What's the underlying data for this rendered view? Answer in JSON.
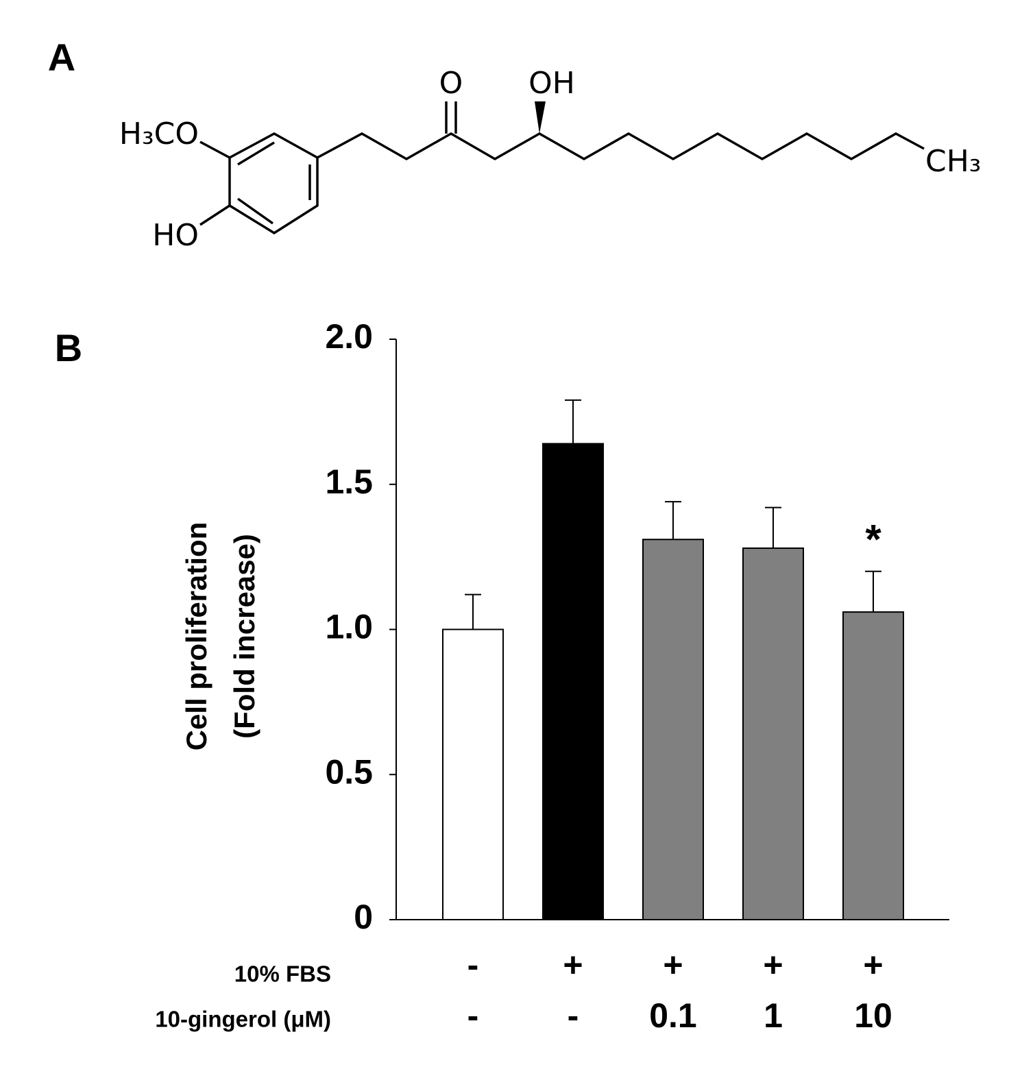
{
  "panels": {
    "a": "A",
    "b": "B"
  },
  "structure": {
    "methoxy": "H₃CO",
    "hydroxy_ring": "HO",
    "ketone": "O",
    "hydroxy_chain": "OH",
    "methyl": "CH₃"
  },
  "chart_data": {
    "type": "bar",
    "ylabel": [
      "Cell proliferation",
      "(Fold increase)"
    ],
    "values": [
      1.0,
      1.64,
      1.31,
      1.28,
      1.06
    ],
    "errors": [
      0.12,
      0.15,
      0.13,
      0.14,
      0.14
    ],
    "colors": [
      "#ffffff",
      "#000000",
      "#808080",
      "#808080",
      "#808080"
    ],
    "significance": [
      null,
      null,
      null,
      null,
      "*"
    ],
    "condition_rows": [
      {
        "label": "10% FBS",
        "entries": [
          "-",
          "+",
          "+",
          "+",
          "+"
        ]
      },
      {
        "label": "10-gingerol (μM)",
        "entries": [
          "-",
          "-",
          "0.1",
          "1",
          "10"
        ]
      }
    ],
    "ylim": [
      0,
      2
    ],
    "yticks": [
      0,
      0.5,
      {
        "value": 1,
        "label": "1.0"
      },
      1.5,
      {
        "value": 2,
        "label": "2.0"
      }
    ],
    "grid": false
  }
}
